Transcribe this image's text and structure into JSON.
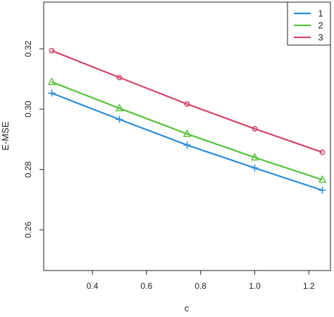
{
  "chart_data": {
    "type": "line",
    "title": "",
    "xlabel": "c",
    "ylabel": "E-MSE",
    "x": [
      0.25,
      0.5,
      0.75,
      1.0,
      1.25
    ],
    "xlim": [
      0.22,
      1.28
    ],
    "ylim": [
      0.2465,
      0.3355
    ],
    "x_ticks": [
      "0.4",
      "0.6",
      "0.8",
      "1.0",
      "1.2"
    ],
    "y_ticks": [
      "0.26",
      "0.28",
      "0.30",
      "0.32"
    ],
    "grid": false,
    "legend_position": "top-right",
    "series": [
      {
        "name": "1",
        "color": "#2B8CDB",
        "marker": "plus",
        "values": [
          0.3053,
          0.2966,
          0.2881,
          0.2805,
          0.2731
        ]
      },
      {
        "name": "2",
        "color": "#56C23A",
        "marker": "triangle",
        "values": [
          0.309,
          0.3003,
          0.2918,
          0.284,
          0.2766
        ]
      },
      {
        "name": "3",
        "color": "#D6456A",
        "marker": "circle",
        "values": [
          0.3194,
          0.3105,
          0.3017,
          0.2935,
          0.2857
        ]
      }
    ]
  }
}
